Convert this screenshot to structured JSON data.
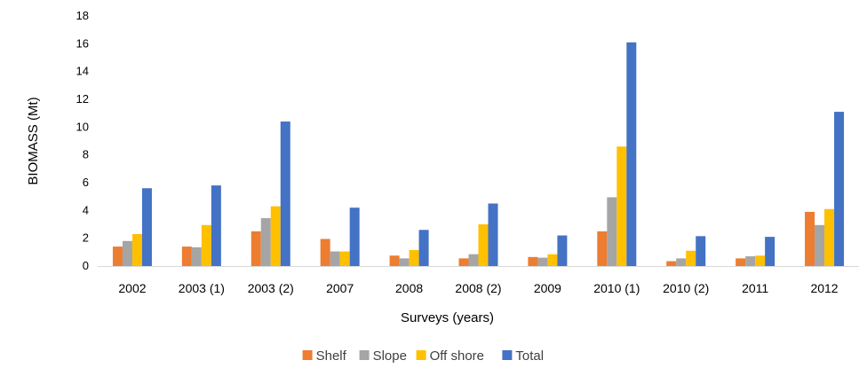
{
  "chart_data": {
    "type": "bar",
    "title": "",
    "xlabel": "Surveys (years)",
    "ylabel": "BIOMASS (Mt)",
    "ylim": [
      0,
      18
    ],
    "yticks": [
      "0",
      "2",
      "4",
      "6",
      "8",
      "10",
      "12",
      "14",
      "16",
      "18"
    ],
    "grid": false,
    "legend_position": "bottom",
    "categories": [
      "2002",
      "2003 (1)",
      "2003 (2)",
      "2007",
      "2008",
      "2008 (2)",
      "2009",
      "2010 (1)",
      "2010 (2)",
      "2011",
      "2012"
    ],
    "series": [
      {
        "name": "Shelf",
        "color": "#ED7D31",
        "values": [
          1.4,
          1.4,
          2.5,
          1.95,
          0.75,
          0.55,
          0.65,
          2.5,
          0.35,
          0.55,
          3.9
        ]
      },
      {
        "name": "Slope",
        "color": "#A5A5A5",
        "values": [
          1.8,
          1.35,
          3.45,
          1.05,
          0.55,
          0.85,
          0.6,
          4.95,
          0.55,
          0.7,
          2.95
        ]
      },
      {
        "name": "Off shore",
        "color": "#FFC000",
        "values": [
          2.3,
          2.95,
          4.3,
          1.05,
          1.15,
          3.0,
          0.85,
          8.6,
          1.1,
          0.75,
          4.1
        ]
      },
      {
        "name": "Total",
        "color": "#4472C4",
        "values": [
          5.6,
          5.8,
          10.4,
          4.2,
          2.6,
          4.5,
          2.2,
          16.1,
          2.15,
          2.1,
          11.1
        ]
      }
    ]
  }
}
